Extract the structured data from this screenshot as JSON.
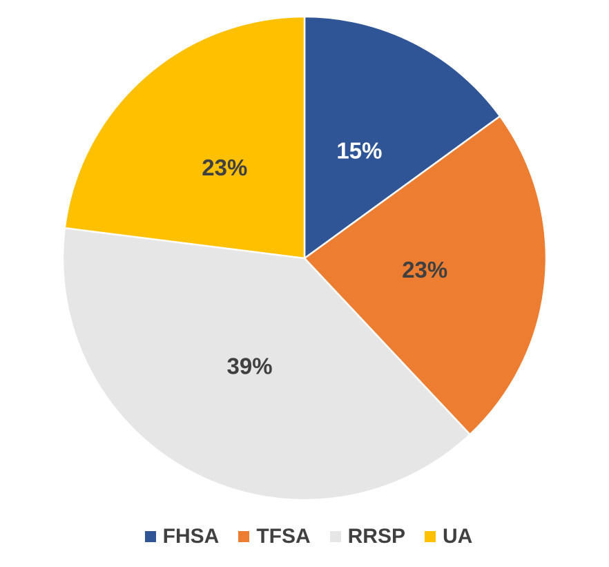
{
  "chart_data": {
    "type": "pie",
    "title": "",
    "categories": [
      "FHSA",
      "TFSA",
      "RRSP",
      "UA"
    ],
    "values": [
      15,
      23,
      39,
      23
    ],
    "data_labels": [
      "15%",
      "23%",
      "39%",
      "23%"
    ],
    "colors": [
      "#2F5597",
      "#ED7D31",
      "#E7E6E6",
      "#FFC000"
    ],
    "data_label_colors": [
      "#FFFFFF",
      "#404040",
      "#404040",
      "#404040"
    ],
    "legend_position": "bottom"
  }
}
